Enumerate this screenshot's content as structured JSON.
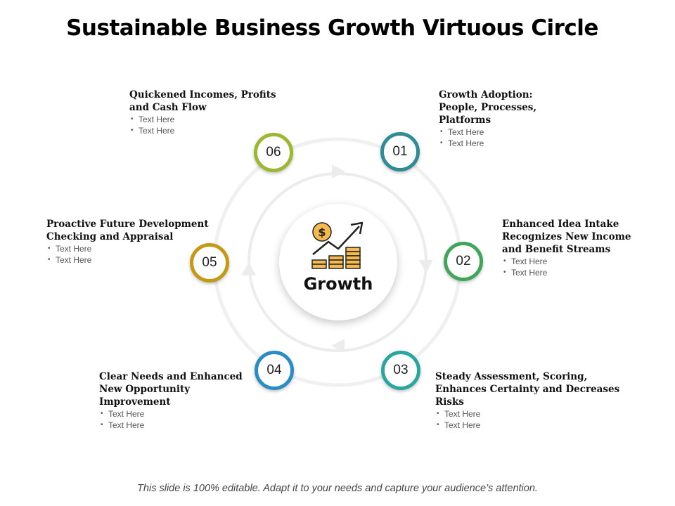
{
  "title": "Sustainable Business Growth Virtuous Circle",
  "hub": {
    "label": "Growth",
    "icon": "growth-chart-icon",
    "currency_symbol": "$"
  },
  "nodes": [
    {
      "number": "06",
      "heading": "Quickened Incomes, Profits\n and Cash Flow",
      "bullets": [
        "Text Here",
        "Text Here"
      ],
      "color": "#9ab830"
    },
    {
      "number": "01",
      "heading": "Growth Adoption:\nPeople, Processes,\nPlatforms",
      "bullets": [
        "Text Here",
        "Text Here"
      ],
      "color": "#2e8c96"
    },
    {
      "number": "02",
      "heading": "Enhanced Idea Intake\nRecognizes New Income\nand Benefit Streams",
      "bullets": [
        "Text Here",
        "Text Here"
      ],
      "color": "#40a45a"
    },
    {
      "number": "03",
      "heading": "Steady Assessment, Scoring,\nEnhances Certainty and Decreases\nRisks",
      "bullets": [
        "Text Here",
        "Text Here"
      ],
      "color": "#2aa6a0"
    },
    {
      "number": "04",
      "heading": "Clear Needs and Enhanced\nNew Opportunity\nImprovement",
      "bullets": [
        "Text Here",
        "Text Here"
      ],
      "color": "#2a8cc4"
    },
    {
      "number": "05",
      "heading": "Proactive Future Development\nChecking and Appraisal",
      "bullets": [
        "Text Here",
        "Text Here"
      ],
      "color": "#c49a14"
    }
  ],
  "footer": "This slide is 100% editable. Adapt it to your needs and capture your audience’s attention."
}
